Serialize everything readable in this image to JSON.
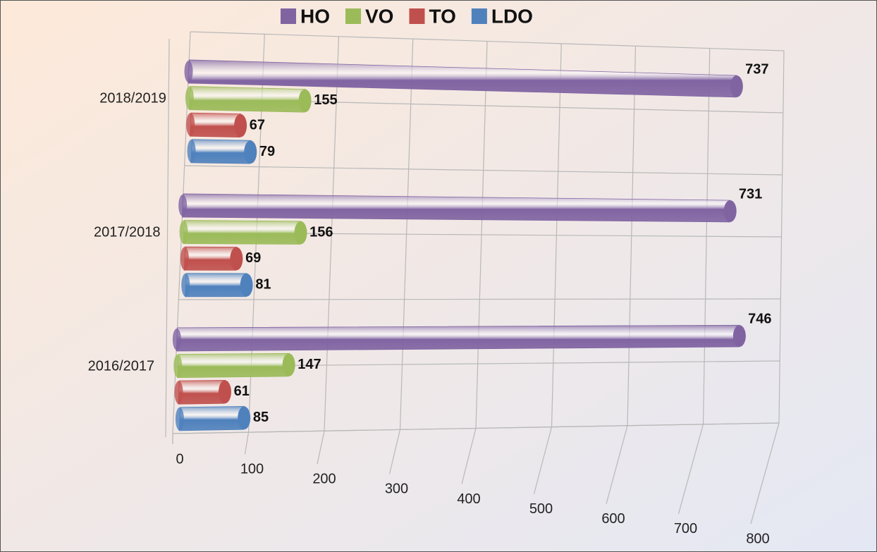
{
  "chart_data": {
    "type": "bar3d",
    "orientation": "horizontal",
    "categories": [
      "2016/2017",
      "2017/2018",
      "2018/2019"
    ],
    "series": [
      {
        "name": "HO",
        "color": "#8064a2",
        "values": [
          746,
          731,
          737
        ]
      },
      {
        "name": "VO",
        "color": "#9bbb59",
        "values": [
          147,
          156,
          155
        ]
      },
      {
        "name": "TO",
        "color": "#c0504d",
        "values": [
          61,
          69,
          67
        ]
      },
      {
        "name": "LDO",
        "color": "#4f81bd",
        "values": [
          85,
          81,
          79
        ]
      }
    ],
    "xlim": [
      0,
      800
    ],
    "xticks": [
      0,
      100,
      200,
      300,
      400,
      500,
      600,
      700,
      800
    ],
    "grid": true,
    "legend": "top"
  }
}
